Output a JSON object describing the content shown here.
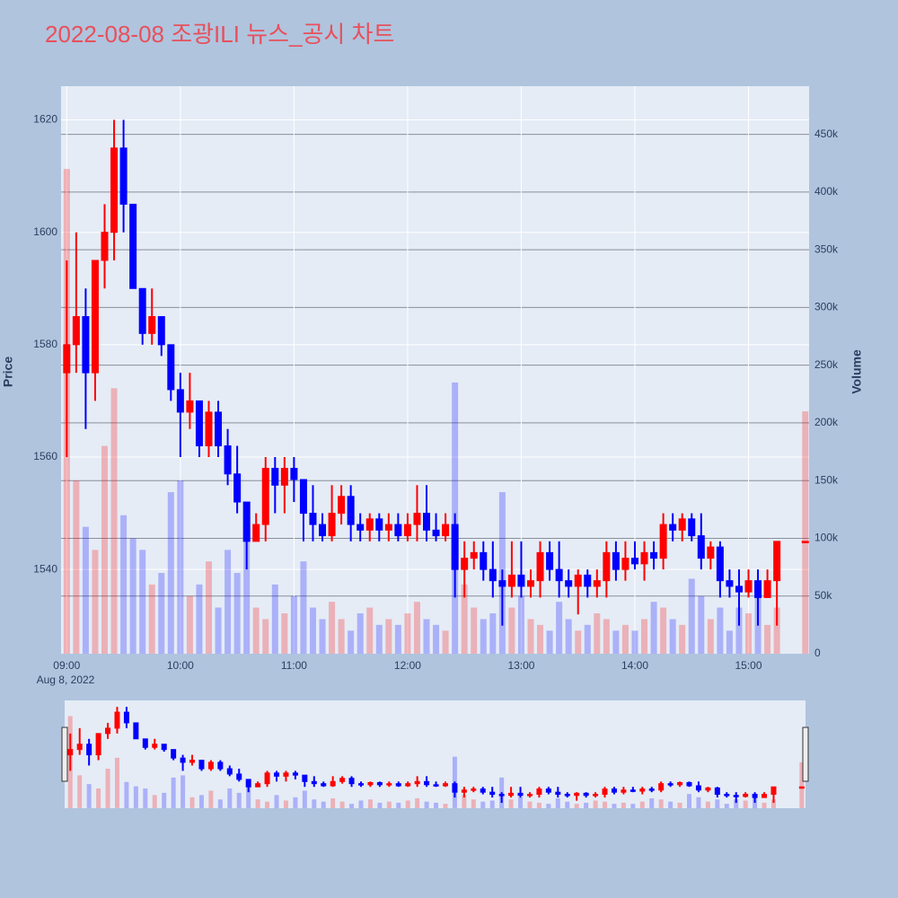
{
  "chart_data": {
    "type": "candlestick",
    "title": "2022-08-08 조광ILI 뉴스_공시 차트",
    "y_label": "Price",
    "y2_label": "Volume",
    "x_date_label": "Aug 8, 2022",
    "increasing_color": "#ff0000",
    "decreasing_color": "#0000ff",
    "x": [
      "09:00",
      "09:05",
      "09:10",
      "09:15",
      "09:20",
      "09:25",
      "09:30",
      "09:35",
      "09:40",
      "09:45",
      "09:50",
      "09:55",
      "10:00",
      "10:05",
      "10:10",
      "10:15",
      "10:20",
      "10:25",
      "10:30",
      "10:35",
      "10:40",
      "10:45",
      "10:50",
      "10:55",
      "11:00",
      "11:05",
      "11:10",
      "11:15",
      "11:20",
      "11:25",
      "11:30",
      "11:35",
      "11:40",
      "11:45",
      "11:50",
      "11:55",
      "12:00",
      "12:05",
      "12:10",
      "12:15",
      "12:20",
      "12:25",
      "12:30",
      "12:35",
      "12:40",
      "12:45",
      "12:50",
      "12:55",
      "13:00",
      "13:05",
      "13:10",
      "13:15",
      "13:20",
      "13:25",
      "13:30",
      "13:35",
      "13:40",
      "13:45",
      "13:50",
      "13:55",
      "14:00",
      "14:05",
      "14:10",
      "14:15",
      "14:20",
      "14:25",
      "14:30",
      "14:35",
      "14:40",
      "14:45",
      "14:50",
      "14:55",
      "15:00",
      "15:05",
      "15:10",
      "15:15",
      "15:30"
    ],
    "open": [
      1575,
      1580,
      1585,
      1575,
      1595,
      1600,
      1615,
      1605,
      1590,
      1582,
      1585,
      1580,
      1572,
      1568,
      1570,
      1562,
      1568,
      1562,
      1557,
      1552,
      1545,
      1548,
      1558,
      1555,
      1558,
      1556,
      1550,
      1548,
      1546,
      1550,
      1553,
      1548,
      1547,
      1549,
      1547,
      1548,
      1546,
      1548,
      1550,
      1547,
      1546,
      1548,
      1540,
      1542,
      1543,
      1540,
      1538,
      1537,
      1539,
      1537,
      1538,
      1543,
      1540,
      1538,
      1537,
      1539,
      1537,
      1538,
      1543,
      1540,
      1542,
      1541,
      1543,
      1542,
      1548,
      1547,
      1549,
      1546,
      1542,
      1544,
      1538,
      1537,
      1536,
      1538,
      1535,
      1538,
      1545
    ],
    "high": [
      1595,
      1600,
      1590,
      1595,
      1605,
      1620,
      1620,
      1605,
      1590,
      1590,
      1585,
      1580,
      1575,
      1575,
      1570,
      1570,
      1570,
      1565,
      1562,
      1552,
      1550,
      1560,
      1560,
      1560,
      1560,
      1556,
      1555,
      1550,
      1555,
      1555,
      1555,
      1550,
      1550,
      1550,
      1550,
      1550,
      1550,
      1555,
      1555,
      1550,
      1550,
      1550,
      1545,
      1545,
      1545,
      1545,
      1540,
      1545,
      1545,
      1540,
      1545,
      1545,
      1545,
      1540,
      1540,
      1540,
      1540,
      1545,
      1545,
      1545,
      1545,
      1545,
      1545,
      1550,
      1550,
      1550,
      1550,
      1550,
      1545,
      1545,
      1540,
      1540,
      1540,
      1540,
      1540,
      1545,
      1545
    ],
    "low": [
      1560,
      1575,
      1565,
      1570,
      1590,
      1595,
      1600,
      1590,
      1580,
      1580,
      1578,
      1570,
      1560,
      1565,
      1560,
      1560,
      1560,
      1555,
      1550,
      1540,
      1545,
      1545,
      1550,
      1550,
      1552,
      1545,
      1545,
      1545,
      1545,
      1548,
      1545,
      1545,
      1545,
      1545,
      1545,
      1545,
      1545,
      1545,
      1545,
      1545,
      1545,
      1535,
      1535,
      1540,
      1538,
      1535,
      1530,
      1535,
      1535,
      1535,
      1535,
      1538,
      1535,
      1535,
      1532,
      1535,
      1535,
      1535,
      1538,
      1538,
      1540,
      1538,
      1540,
      1540,
      1545,
      1545,
      1545,
      1540,
      1540,
      1535,
      1535,
      1530,
      1535,
      1530,
      1535,
      1530,
      1545
    ],
    "close": [
      1580,
      1585,
      1575,
      1595,
      1600,
      1615,
      1605,
      1590,
      1582,
      1585,
      1580,
      1572,
      1568,
      1570,
      1562,
      1568,
      1562,
      1557,
      1552,
      1545,
      1548,
      1558,
      1555,
      1558,
      1556,
      1550,
      1548,
      1546,
      1550,
      1553,
      1548,
      1547,
      1549,
      1547,
      1548,
      1546,
      1548,
      1550,
      1547,
      1546,
      1548,
      1540,
      1542,
      1543,
      1540,
      1538,
      1537,
      1539,
      1537,
      1538,
      1543,
      1540,
      1538,
      1537,
      1539,
      1537,
      1538,
      1543,
      1540,
      1542,
      1541,
      1543,
      1542,
      1548,
      1547,
      1549,
      1546,
      1542,
      1544,
      1538,
      1537,
      1536,
      1538,
      1535,
      1538,
      1545,
      1545
    ],
    "volume": [
      420000,
      150000,
      110000,
      90000,
      180000,
      230000,
      120000,
      100000,
      90000,
      60000,
      70000,
      140000,
      150000,
      50000,
      60000,
      80000,
      40000,
      90000,
      70000,
      100000,
      40000,
      30000,
      60000,
      35000,
      50000,
      80000,
      40000,
      30000,
      45000,
      30000,
      20000,
      35000,
      40000,
      25000,
      30000,
      25000,
      35000,
      45000,
      30000,
      25000,
      20000,
      235000,
      60000,
      40000,
      30000,
      35000,
      140000,
      40000,
      50000,
      30000,
      25000,
      20000,
      45000,
      30000,
      20000,
      25000,
      35000,
      30000,
      20000,
      25000,
      20000,
      30000,
      45000,
      40000,
      30000,
      25000,
      65000,
      50000,
      30000,
      40000,
      20000,
      40000,
      35000,
      60000,
      25000,
      40000,
      210000
    ],
    "xlim": [
      "08:57",
      "15:32"
    ],
    "xticks": [
      "09:00",
      "10:00",
      "11:00",
      "12:00",
      "13:00",
      "14:00",
      "15:00"
    ],
    "ylim": [
      1525,
      1626
    ],
    "yticks": [
      1540,
      1560,
      1580,
      1600,
      1620
    ],
    "y2lim": [
      0,
      491700
    ],
    "y2ticks": [
      0,
      {
        "value": 50000,
        "label": "50k"
      },
      {
        "value": 100000,
        "label": "100k"
      },
      {
        "value": 150000,
        "label": "150k"
      },
      {
        "value": 200000,
        "label": "200k"
      },
      {
        "value": 250000,
        "label": "250k"
      },
      {
        "value": 300000,
        "label": "300k"
      },
      {
        "value": 350000,
        "label": "350k"
      },
      {
        "value": 400000,
        "label": "400k"
      },
      {
        "value": 450000,
        "label": "450k"
      }
    ],
    "grid": true
  }
}
